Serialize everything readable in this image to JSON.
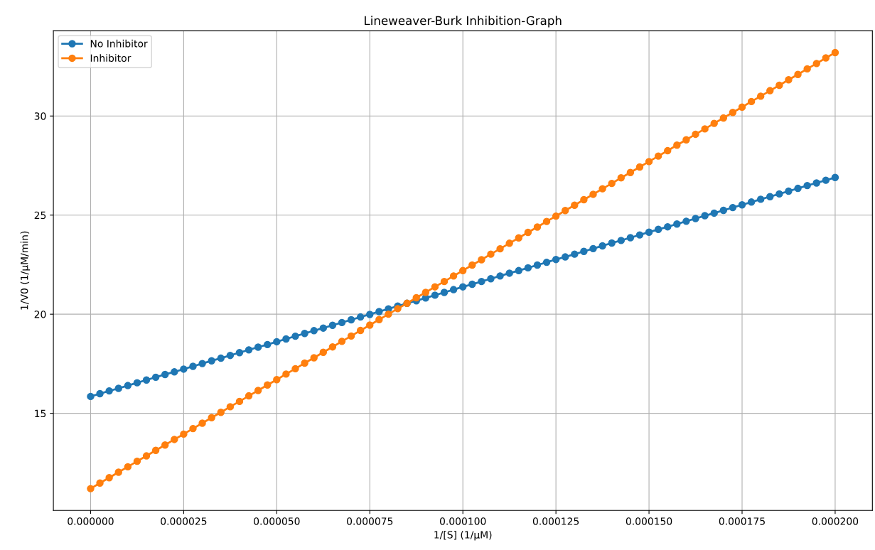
{
  "chart_data": {
    "type": "line",
    "title": "Lineweaver-Burk Inhibition-Graph",
    "xlabel": "1/[S] (1/µM)",
    "ylabel": "1/V0 (1/µM/min)",
    "x": [
      0,
      2.5e-06,
      5e-06,
      7.5e-06,
      1e-05,
      1.25e-05,
      1.5e-05,
      1.75e-05,
      2e-05,
      2.25e-05,
      2.5e-05,
      2.75e-05,
      3e-05,
      3.25e-05,
      3.5e-05,
      3.75e-05,
      4e-05,
      4.25e-05,
      4.5e-05,
      4.75e-05,
      5e-05,
      5.25e-05,
      5.5e-05,
      5.75e-05,
      6e-05,
      6.25e-05,
      6.5e-05,
      6.75e-05,
      7e-05,
      7.25e-05,
      7.5e-05,
      7.75e-05,
      8e-05,
      8.25e-05,
      8.5e-05,
      8.75e-05,
      9e-05,
      9.25e-05,
      9.5e-05,
      9.75e-05,
      0.0001,
      0.0001025,
      0.000105,
      0.0001075,
      0.00011,
      0.0001125,
      0.000115,
      0.0001175,
      0.00012,
      0.0001225,
      0.000125,
      0.0001275,
      0.00013,
      0.0001325,
      0.000135,
      0.0001375,
      0.00014,
      0.0001425,
      0.000145,
      0.0001475,
      0.00015,
      0.0001525,
      0.000155,
      0.0001575,
      0.00016,
      0.0001625,
      0.000165,
      0.0001675,
      0.00017,
      0.0001725,
      0.000175,
      0.0001775,
      0.00018,
      0.0001825,
      0.000185,
      0.0001875,
      0.00019,
      0.0001925,
      0.000195,
      0.0001975,
      0.0002
    ],
    "series": [
      {
        "name": "No Inhibitor",
        "color": "#1f77b4",
        "values": [
          15.85,
          15.99,
          16.13,
          16.26,
          16.4,
          16.54,
          16.68,
          16.82,
          16.96,
          17.09,
          17.23,
          17.37,
          17.51,
          17.65,
          17.78,
          17.92,
          18.06,
          18.2,
          18.34,
          18.47,
          18.61,
          18.75,
          18.89,
          19.03,
          19.17,
          19.3,
          19.44,
          19.58,
          19.72,
          19.86,
          19.99,
          20.13,
          20.27,
          20.41,
          20.55,
          20.68,
          20.82,
          20.96,
          21.1,
          21.24,
          21.38,
          21.51,
          21.65,
          21.79,
          21.93,
          22.07,
          22.2,
          22.34,
          22.48,
          22.62,
          22.76,
          22.89,
          23.03,
          23.17,
          23.31,
          23.45,
          23.59,
          23.72,
          23.86,
          24.0,
          24.14,
          24.28,
          24.41,
          24.55,
          24.69,
          24.83,
          24.97,
          25.1,
          25.24,
          25.38,
          25.52,
          25.66,
          25.8,
          25.93,
          26.07,
          26.21,
          26.35,
          26.49,
          26.62,
          26.76,
          26.9
        ]
      },
      {
        "name": "Inhibitor",
        "color": "#ff7f0e",
        "values": [
          11.2,
          11.48,
          11.75,
          12.03,
          12.3,
          12.58,
          12.85,
          13.13,
          13.4,
          13.68,
          13.95,
          14.23,
          14.5,
          14.78,
          15.05,
          15.33,
          15.6,
          15.88,
          16.15,
          16.43,
          16.7,
          16.98,
          17.25,
          17.53,
          17.8,
          18.08,
          18.35,
          18.63,
          18.9,
          19.18,
          19.45,
          19.73,
          20.0,
          20.28,
          20.55,
          20.83,
          21.1,
          21.38,
          21.65,
          21.93,
          22.2,
          22.48,
          22.75,
          23.03,
          23.3,
          23.58,
          23.85,
          24.13,
          24.4,
          24.68,
          24.95,
          25.23,
          25.5,
          25.78,
          26.05,
          26.33,
          26.6,
          26.88,
          27.15,
          27.43,
          27.7,
          27.98,
          28.25,
          28.53,
          28.8,
          29.08,
          29.35,
          29.63,
          29.9,
          30.18,
          30.45,
          30.73,
          31.0,
          31.28,
          31.55,
          31.83,
          32.1,
          32.38,
          32.65,
          32.93,
          33.2
        ]
      }
    ],
    "xlim": [
      -1e-05,
      0.00021
    ],
    "ylim": [
      10.1,
      34.3
    ],
    "xticks": [
      {
        "value": 0,
        "label": "0.000000"
      },
      {
        "value": 2.5e-05,
        "label": "0.000025"
      },
      {
        "value": 5e-05,
        "label": "0.000050"
      },
      {
        "value": 7.5e-05,
        "label": "0.000075"
      },
      {
        "value": 0.0001,
        "label": "0.000100"
      },
      {
        "value": 0.000125,
        "label": "0.000125"
      },
      {
        "value": 0.00015,
        "label": "0.000150"
      },
      {
        "value": 0.000175,
        "label": "0.000175"
      },
      {
        "value": 0.0002,
        "label": "0.000200"
      }
    ],
    "yticks": [
      15,
      20,
      25,
      30
    ],
    "grid": true,
    "legend": "top left",
    "marker": "circle",
    "line_style": "solid"
  }
}
